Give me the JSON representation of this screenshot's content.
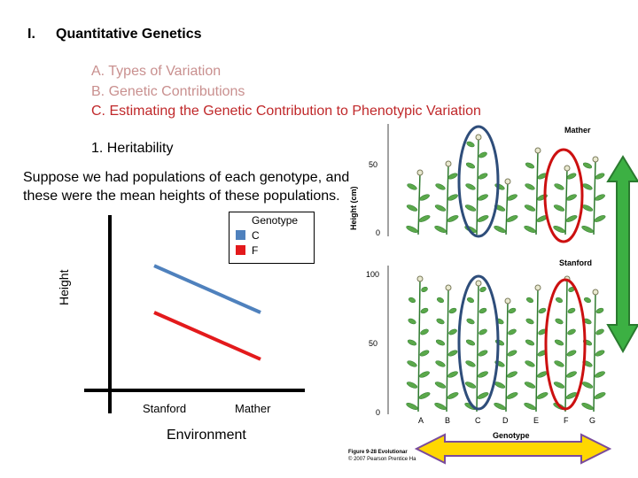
{
  "slide": {
    "roman": "I.",
    "heading": "Quantitative Genetics",
    "outline": {
      "a": "A.  Types of Variation",
      "b": "B. Genetic Contributions",
      "c": "C. Estimating the Genetic Contribution to Phenotypic Variation"
    },
    "subpoint": "1. Heritability",
    "body": "Suppose we had populations of each genotype, and these were the mean heights of these populations."
  },
  "chart_data": {
    "type": "line",
    "title": "",
    "xlabel": "Environment",
    "ylabel": "Height",
    "categories": [
      "Stanford",
      "Mather"
    ],
    "legend_title": "Genotype",
    "series": [
      {
        "name": "C",
        "color": "#4f81bd",
        "values": [
          8,
          5
        ]
      },
      {
        "name": "F",
        "color": "#e31a1c",
        "values": [
          5,
          2
        ]
      }
    ],
    "ylim": [
      0,
      10
    ]
  },
  "figure": {
    "label_mather": "Mather",
    "label_stanford": "Stanford",
    "ylabel": "Height (cm)",
    "ticks_top": [
      "50",
      "0"
    ],
    "ticks_bottom": [
      "100",
      "50",
      "0"
    ],
    "genotypes": [
      "A",
      "B",
      "C",
      "D",
      "E",
      "F",
      "G"
    ],
    "xlabel": "Genotype",
    "caption_1": "Figure 9-28 Evolutionar",
    "caption_2": "© 2007 Pearson Prentice Ha"
  },
  "colors": {
    "series_c": "#4f81bd",
    "series_f": "#e31a1c",
    "arrow_green": "#3cb043",
    "arrow_yellow": "#ffd700",
    "ellipse_blue": "#2e4d7a",
    "ellipse_red": "#cc1010"
  }
}
